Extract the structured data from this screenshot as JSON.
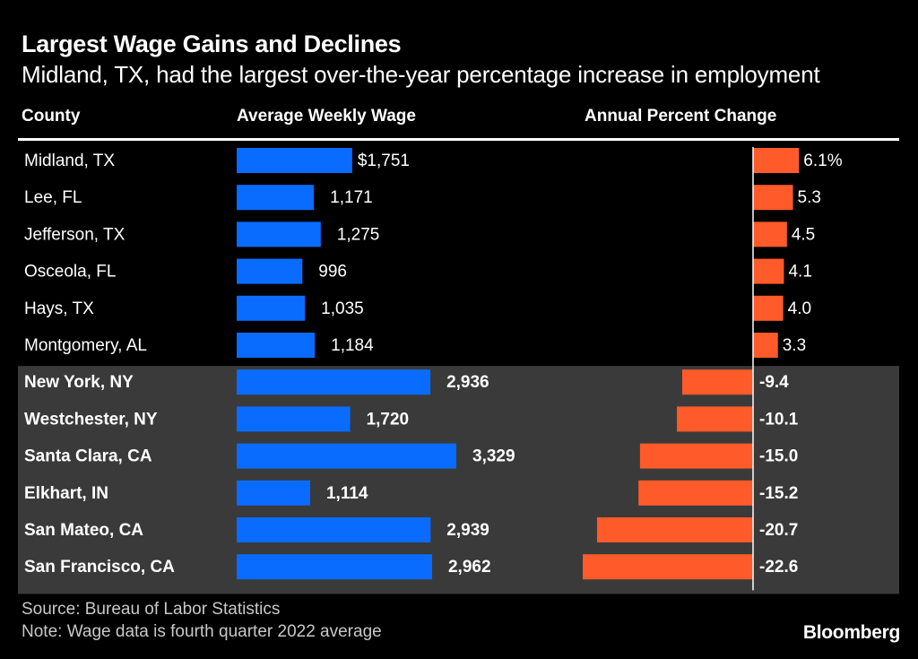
{
  "header": {
    "title": "Largest Wage Gains and Declines",
    "subtitle": "Midland, TX, had the largest over-the-year percentage increase in employment"
  },
  "columns": {
    "county": "County",
    "wage": "Average Weekly Wage",
    "change": "Annual Percent Change"
  },
  "footer": {
    "source": "Source: Bureau of Labor Statistics",
    "note": "Note: Wage data is fourth quarter 2022 average",
    "brand": "Bloomberg"
  },
  "colors": {
    "wage_bar": "#0a6cff",
    "change_bar": "#ff5a2a",
    "decline_band": "#3a3a3a",
    "axis_line": "#ffffff"
  },
  "chart_data": {
    "type": "bar",
    "title": "Largest Wage Gains and Declines",
    "categories": [
      "Midland, TX",
      "Lee, FL",
      "Jefferson, TX",
      "Osceola, FL",
      "Hays, TX",
      "Montgomery, AL",
      "New York, NY",
      "Westchester, NY",
      "Santa Clara, CA",
      "Elkhart, IN",
      "San Mateo, CA",
      "San Francisco, CA"
    ],
    "groups": [
      "gain",
      "gain",
      "gain",
      "gain",
      "gain",
      "gain",
      "decline",
      "decline",
      "decline",
      "decline",
      "decline",
      "decline"
    ],
    "series": [
      {
        "name": "Average Weekly Wage",
        "values": [
          1751,
          1171,
          1275,
          996,
          1035,
          1184,
          2936,
          1720,
          3329,
          1114,
          2939,
          2962
        ],
        "labels": [
          "$1,751",
          "1,171",
          "1,275",
          "996",
          "1,035",
          "1,184",
          "2,936",
          "1,720",
          "3,329",
          "1,114",
          "2,939",
          "2,962"
        ],
        "xlim": [
          0,
          3329
        ]
      },
      {
        "name": "Annual Percent Change",
        "values": [
          6.1,
          5.3,
          4.5,
          4.1,
          4.0,
          3.3,
          -9.4,
          -10.1,
          -15.0,
          -15.2,
          -20.7,
          -22.6
        ],
        "labels": [
          "6.1%",
          "5.3",
          "4.5",
          "4.1",
          "4.0",
          "3.3",
          "-9.4",
          "-10.1",
          "-15.0",
          "-15.2",
          "-20.7",
          "-22.6"
        ],
        "xlim": [
          -22.6,
          6.1
        ]
      }
    ]
  }
}
